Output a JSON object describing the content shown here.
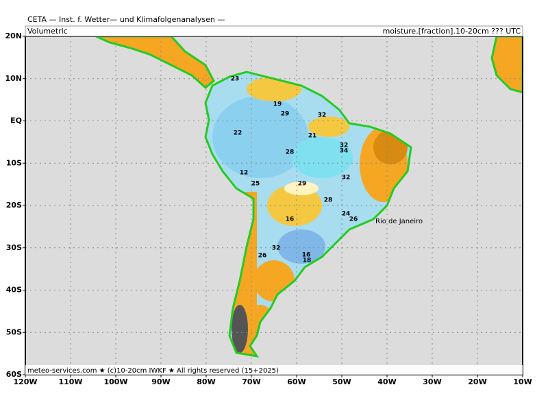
{
  "header": {
    "title": "CETA — Inst. f. Wetter— und Klimafolgenanalysen —",
    "left_label": "Volumetric",
    "right_label": "moisture.[fraction].10-20cm ??? UTC"
  },
  "axes": {
    "lat_labels": [
      "20N",
      "10N",
      "EQ",
      "10S",
      "20S",
      "30S",
      "40S",
      "50S",
      "60S"
    ],
    "lon_labels": [
      "120W",
      "110W",
      "100W",
      "90W",
      "80W",
      "70W",
      "60W",
      "50W",
      "40W",
      "30W",
      "20W",
      "10W"
    ]
  },
  "places": [
    "Rio de Janeiro"
  ],
  "contour_labels": [
    "23",
    "19",
    "29",
    "32",
    "22",
    "28",
    "21",
    "32",
    "34",
    "12",
    "25",
    "29",
    "28",
    "32",
    "26",
    "16",
    "24",
    "26",
    "16",
    "18",
    "32"
  ],
  "footer": "meteo-services.com ★ (c)10-20cm IWKF ★ All rights reserved (15+2025)"
}
